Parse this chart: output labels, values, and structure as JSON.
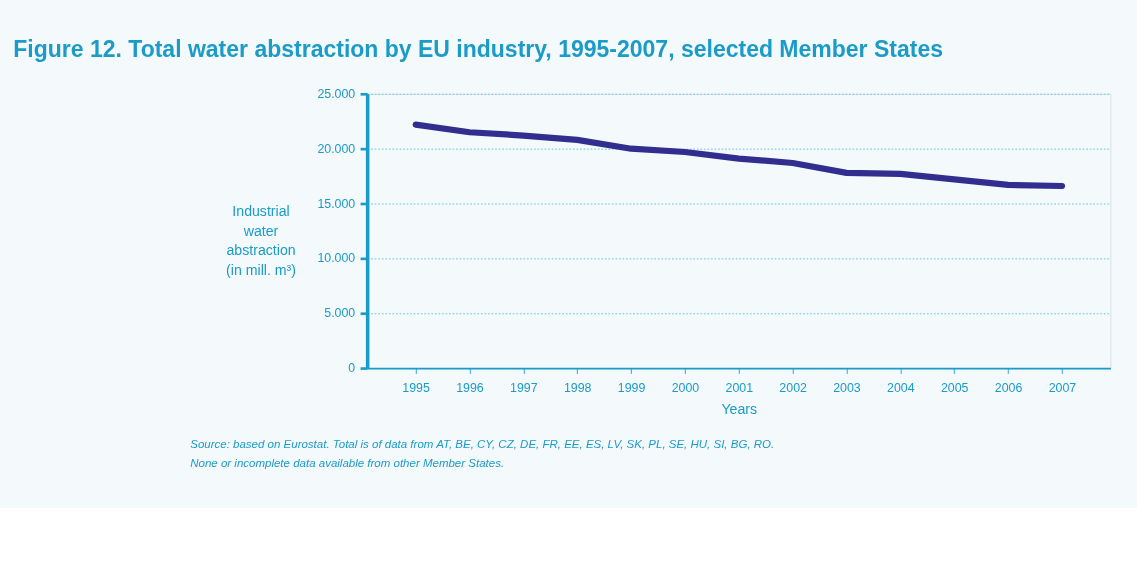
{
  "chart_data": {
    "type": "line",
    "title": "Figure 12. Total water abstraction by EU industry, 1995-2007, selected Member States",
    "xlabel": "Years",
    "ylabel": "Industrial water abstraction (in mill. m³)",
    "categories": [
      "1995",
      "1996",
      "1997",
      "1998",
      "1999",
      "2000",
      "2001",
      "2002",
      "2003",
      "2004",
      "2005",
      "2006",
      "2007"
    ],
    "series": [
      {
        "color": "#312e8f",
        "values": [
          22200,
          21500,
          21200,
          20800,
          20000,
          19700,
          19100,
          18700,
          17800,
          17700,
          17200,
          16700,
          16600
        ]
      }
    ],
    "ylim": [
      0,
      25000
    ],
    "yticks": [
      {
        "value": 0,
        "label": "0"
      },
      {
        "value": 5000,
        "label": "5.000"
      },
      {
        "value": 10000,
        "label": "10.000"
      },
      {
        "value": 15000,
        "label": "15.000"
      },
      {
        "value": 20000,
        "label": "20.000"
      },
      {
        "value": 25000,
        "label": "25.000"
      }
    ],
    "grid": "y",
    "legend": false,
    "marker": "none",
    "line_style": "solid",
    "annotations": [
      "Source: based on Eurostat. Total is of data from AT, BE, CY, CZ, DE, FR, EE, ES, LV, SK, PL, SE, HU, SI, BG, RO.",
      "None or incomplete data available from other Member States."
    ]
  }
}
